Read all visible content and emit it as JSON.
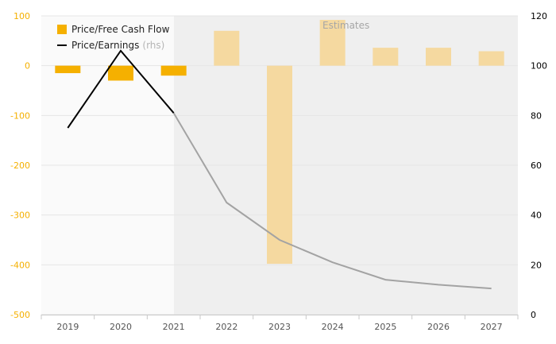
{
  "chart_data": {
    "type": "bar+line",
    "categories": [
      "2019",
      "2020",
      "2021",
      "2022",
      "2023",
      "2024",
      "2025",
      "2026",
      "2027"
    ],
    "estimates_label": "Estimates",
    "estimates_from": "2022",
    "series": [
      {
        "name": "Price/Free Cash Flow",
        "type": "bar",
        "axis": "left",
        "values": [
          -15,
          -30,
          -20,
          70,
          -398,
          92,
          36,
          36,
          29
        ]
      },
      {
        "name": "Price/Earnings",
        "type": "line",
        "axis": "right",
        "values": [
          75,
          106,
          81,
          45,
          30,
          21,
          14,
          12,
          10.5
        ]
      }
    ],
    "left_axis": {
      "ticks": [
        100,
        0,
        -100,
        -200,
        -300,
        -400,
        -500
      ],
      "ylim": [
        -500,
        100
      ]
    },
    "right_axis": {
      "ticks": [
        120,
        100,
        80,
        60,
        40,
        20,
        0
      ],
      "ylim": [
        0,
        120
      ]
    },
    "legend": {
      "bar_label": "Price/Free Cash Flow",
      "line_label": "Price/Earnings",
      "line_suffix": "(rhs)",
      "position": "top-left"
    },
    "colors": {
      "bar": "#F5B000",
      "bar_estimate": "#F5D9A0",
      "line": "#000000",
      "line_estimate": "#A3A3A3",
      "left_tick": "#F5B000",
      "right_tick": "#000000",
      "estimate_bg": "#EFEFEF"
    }
  }
}
